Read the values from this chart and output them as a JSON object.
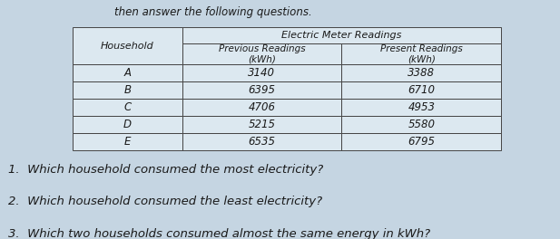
{
  "title_text": "then answer the following questions.",
  "table_header_main": "Electric Meter Readings",
  "table_col1_header": "Household",
  "table_col2_header": "Previous Readings\n(kWh)",
  "table_col3_header": "Present Readings\n(kWh)",
  "households": [
    "A",
    "B",
    "C",
    "D",
    "E"
  ],
  "previous_readings": [
    3140,
    6395,
    4706,
    5215,
    6535
  ],
  "present_readings": [
    3388,
    6710,
    4953,
    5580,
    6795
  ],
  "questions": [
    "1.  Which household consumed the most electricity?",
    "2.  Which household consumed the least electricity?",
    "3.  Which two households consumed almost the same energy in kWh?"
  ],
  "bg_color": "#c5d5e2",
  "table_face_color": "#dce8f0",
  "table_edge_color": "#444444",
  "text_color": "#1a1a1a",
  "title_fontsize": 8.5,
  "header_fontsize": 8,
  "data_fontsize": 8.5,
  "question_fontsize": 9.5
}
